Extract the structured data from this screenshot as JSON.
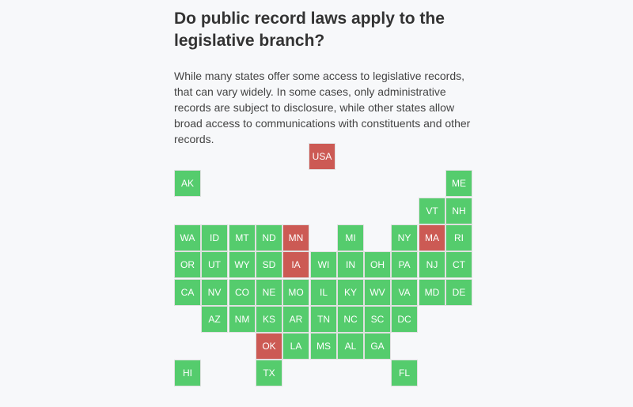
{
  "heading": "Do public record laws apply to the legislative branch?",
  "description": "While many states offer some access to legislative records, that can vary widely. In some cases, only administrative records are subject to disclosure, while other states allow broad access to communications with constituents and other records.",
  "colors": {
    "yes": "#55cc6d",
    "no": "#cc5a54"
  },
  "tiles": [
    {
      "label": "USA",
      "col": 5,
      "row": 0,
      "status": "no",
      "wide": true
    },
    {
      "label": "AK",
      "col": 0,
      "row": 1,
      "status": "yes"
    },
    {
      "label": "ME",
      "col": 10,
      "row": 1,
      "status": "yes"
    },
    {
      "label": "VT",
      "col": 9,
      "row": 2,
      "status": "yes"
    },
    {
      "label": "NH",
      "col": 10,
      "row": 2,
      "status": "yes"
    },
    {
      "label": "WA",
      "col": 0,
      "row": 3,
      "status": "yes"
    },
    {
      "label": "ID",
      "col": 1,
      "row": 3,
      "status": "yes"
    },
    {
      "label": "MT",
      "col": 2,
      "row": 3,
      "status": "yes"
    },
    {
      "label": "ND",
      "col": 3,
      "row": 3,
      "status": "yes"
    },
    {
      "label": "MN",
      "col": 4,
      "row": 3,
      "status": "no"
    },
    {
      "label": "MI",
      "col": 6,
      "row": 3,
      "status": "yes"
    },
    {
      "label": "NY",
      "col": 8,
      "row": 3,
      "status": "yes"
    },
    {
      "label": "MA",
      "col": 9,
      "row": 3,
      "status": "no"
    },
    {
      "label": "RI",
      "col": 10,
      "row": 3,
      "status": "yes"
    },
    {
      "label": "OR",
      "col": 0,
      "row": 4,
      "status": "yes"
    },
    {
      "label": "UT",
      "col": 1,
      "row": 4,
      "status": "yes"
    },
    {
      "label": "WY",
      "col": 2,
      "row": 4,
      "status": "yes"
    },
    {
      "label": "SD",
      "col": 3,
      "row": 4,
      "status": "yes"
    },
    {
      "label": "IA",
      "col": 4,
      "row": 4,
      "status": "no"
    },
    {
      "label": "WI",
      "col": 5,
      "row": 4,
      "status": "yes"
    },
    {
      "label": "IN",
      "col": 6,
      "row": 4,
      "status": "yes"
    },
    {
      "label": "OH",
      "col": 7,
      "row": 4,
      "status": "yes"
    },
    {
      "label": "PA",
      "col": 8,
      "row": 4,
      "status": "yes"
    },
    {
      "label": "NJ",
      "col": 9,
      "row": 4,
      "status": "yes"
    },
    {
      "label": "CT",
      "col": 10,
      "row": 4,
      "status": "yes"
    },
    {
      "label": "CA",
      "col": 0,
      "row": 5,
      "status": "yes"
    },
    {
      "label": "NV",
      "col": 1,
      "row": 5,
      "status": "yes"
    },
    {
      "label": "CO",
      "col": 2,
      "row": 5,
      "status": "yes"
    },
    {
      "label": "NE",
      "col": 3,
      "row": 5,
      "status": "yes"
    },
    {
      "label": "MO",
      "col": 4,
      "row": 5,
      "status": "yes"
    },
    {
      "label": "IL",
      "col": 5,
      "row": 5,
      "status": "yes"
    },
    {
      "label": "KY",
      "col": 6,
      "row": 5,
      "status": "yes"
    },
    {
      "label": "WV",
      "col": 7,
      "row": 5,
      "status": "yes"
    },
    {
      "label": "VA",
      "col": 8,
      "row": 5,
      "status": "yes"
    },
    {
      "label": "MD",
      "col": 9,
      "row": 5,
      "status": "yes"
    },
    {
      "label": "DE",
      "col": 10,
      "row": 5,
      "status": "yes"
    },
    {
      "label": "AZ",
      "col": 1,
      "row": 6,
      "status": "yes"
    },
    {
      "label": "NM",
      "col": 2,
      "row": 6,
      "status": "yes"
    },
    {
      "label": "KS",
      "col": 3,
      "row": 6,
      "status": "yes"
    },
    {
      "label": "AR",
      "col": 4,
      "row": 6,
      "status": "yes"
    },
    {
      "label": "TN",
      "col": 5,
      "row": 6,
      "status": "yes"
    },
    {
      "label": "NC",
      "col": 6,
      "row": 6,
      "status": "yes"
    },
    {
      "label": "SC",
      "col": 7,
      "row": 6,
      "status": "yes"
    },
    {
      "label": "DC",
      "col": 8,
      "row": 6,
      "status": "yes"
    },
    {
      "label": "OK",
      "col": 3,
      "row": 7,
      "status": "no"
    },
    {
      "label": "LA",
      "col": 4,
      "row": 7,
      "status": "yes"
    },
    {
      "label": "MS",
      "col": 5,
      "row": 7,
      "status": "yes"
    },
    {
      "label": "AL",
      "col": 6,
      "row": 7,
      "status": "yes"
    },
    {
      "label": "GA",
      "col": 7,
      "row": 7,
      "status": "yes"
    },
    {
      "label": "HI",
      "col": 0,
      "row": 8,
      "status": "yes"
    },
    {
      "label": "TX",
      "col": 3,
      "row": 8,
      "status": "yes"
    },
    {
      "label": "FL",
      "col": 8,
      "row": 8,
      "status": "yes"
    }
  ]
}
